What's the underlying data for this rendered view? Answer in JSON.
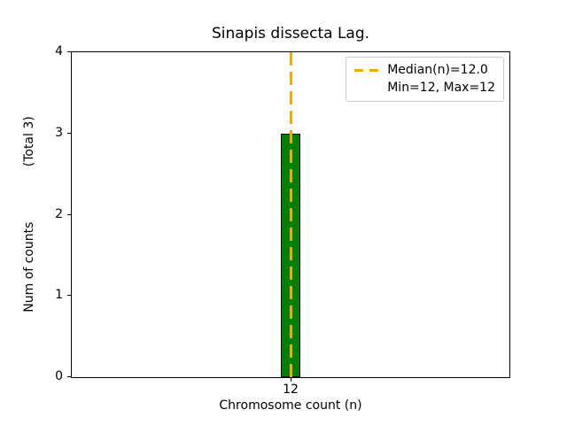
{
  "chart_data": {
    "type": "bar",
    "title": "Sinapis dissecta Lag.",
    "xlabel": "Chromosome count (n)",
    "ylabel": "Num of counts              (Total 3)",
    "categories": [
      "12"
    ],
    "values": [
      3
    ],
    "xticks": [
      "12"
    ],
    "yticks": [
      "0",
      "1",
      "2",
      "3",
      "4"
    ],
    "ytick_values": [
      0,
      1,
      2,
      3,
      4
    ],
    "ylim": [
      0,
      4
    ],
    "grid": false,
    "bar_color": "#008000",
    "bar_edge_color": "#000000",
    "median_line": {
      "x": "12",
      "value": 12.0,
      "color": "#FFA500",
      "style": "dashed"
    },
    "legend": {
      "position": "upper right",
      "entries": [
        {
          "marker": "orange-dashed-line",
          "label": "Median(n)=12.0"
        },
        {
          "marker": "none",
          "label": "Min=12, Max=12"
        }
      ]
    }
  }
}
